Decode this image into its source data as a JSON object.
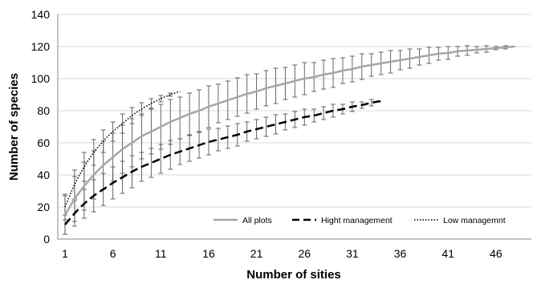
{
  "chart_data": {
    "type": "line",
    "xlabel": "Number of sities",
    "ylabel": "Number of species",
    "xlim": [
      1,
      48
    ],
    "ylim": [
      0,
      140
    ],
    "x_ticks": [
      "1",
      "6",
      "11",
      "16",
      "21",
      "26",
      "31",
      "36",
      "41",
      "46"
    ],
    "y_ticks": [
      "0",
      "20",
      "40",
      "60",
      "80",
      "100",
      "120",
      "140"
    ],
    "legend_position": "bottom-right",
    "series": [
      {
        "name": "All plots",
        "color": "#a6a6a6",
        "style": "solid",
        "x": [
          1,
          2,
          3,
          4,
          5,
          6,
          7,
          8,
          9,
          10,
          11,
          12,
          13,
          14,
          15,
          16,
          17,
          18,
          19,
          20,
          21,
          22,
          23,
          24,
          25,
          26,
          27,
          28,
          29,
          30,
          31,
          32,
          33,
          34,
          35,
          36,
          37,
          38,
          39,
          40,
          41,
          42,
          43,
          44,
          45,
          46,
          47,
          48
        ],
        "y": [
          15,
          25,
          33,
          40,
          46,
          51,
          56,
          60,
          64,
          67,
          70,
          73,
          75.5,
          78,
          80,
          82.5,
          84.5,
          86.5,
          88.5,
          90.5,
          92,
          94,
          95.5,
          97,
          98.5,
          100,
          101,
          102.5,
          103.5,
          105,
          106,
          107.5,
          108.5,
          109.5,
          110.5,
          111.5,
          112.5,
          113.5,
          114.5,
          115.5,
          116,
          117,
          117.5,
          118,
          118.5,
          119,
          119.5,
          120
        ],
        "err": [
          12,
          14,
          15,
          15,
          15,
          15,
          15,
          15,
          14,
          14,
          14,
          14,
          13,
          13,
          13,
          13,
          12,
          12,
          12,
          12,
          11,
          11,
          11,
          10,
          10,
          10,
          9,
          9,
          9,
          8,
          8,
          8,
          7,
          7,
          7,
          6,
          6,
          5,
          5,
          4,
          4,
          3,
          3,
          2,
          2,
          1,
          1,
          0
        ]
      },
      {
        "name": "Hight management",
        "color": "#000000",
        "style": "dashed",
        "x": [
          1,
          2,
          3,
          4,
          5,
          6,
          7,
          8,
          9,
          10,
          11,
          12,
          13,
          14,
          15,
          16,
          17,
          18,
          19,
          20,
          21,
          22,
          23,
          24,
          25,
          26,
          27,
          28,
          29,
          30,
          31,
          32,
          33,
          34
        ],
        "y": [
          9,
          16,
          22,
          27,
          31,
          35,
          38.5,
          42,
          45,
          47.5,
          50,
          52.5,
          54.5,
          56.5,
          58.5,
          60.5,
          62,
          63.5,
          65,
          67,
          68.5,
          70,
          71.5,
          73,
          74.5,
          76,
          77,
          78.5,
          80,
          81,
          82.5,
          83.5,
          85,
          86
        ],
        "err": [
          6,
          8,
          9,
          10,
          10,
          10,
          10,
          10,
          9,
          9,
          9,
          9,
          8,
          8,
          8,
          8,
          7,
          7,
          7,
          6,
          6,
          6,
          6,
          5,
          5,
          5,
          4,
          4,
          4,
          3,
          3,
          2,
          2,
          0
        ]
      },
      {
        "name": "Low managemnt",
        "color": "#000000",
        "style": "dotted",
        "x": [
          1,
          2,
          3,
          4,
          5,
          6,
          7,
          8,
          9,
          10,
          11,
          12,
          13
        ],
        "y": [
          20,
          34,
          45,
          54,
          61,
          67,
          72,
          77,
          81,
          84.5,
          87.5,
          90,
          92
        ],
        "err": [
          8,
          9,
          9,
          8,
          7,
          6,
          6,
          5,
          4,
          3,
          2,
          1,
          0
        ]
      }
    ]
  }
}
